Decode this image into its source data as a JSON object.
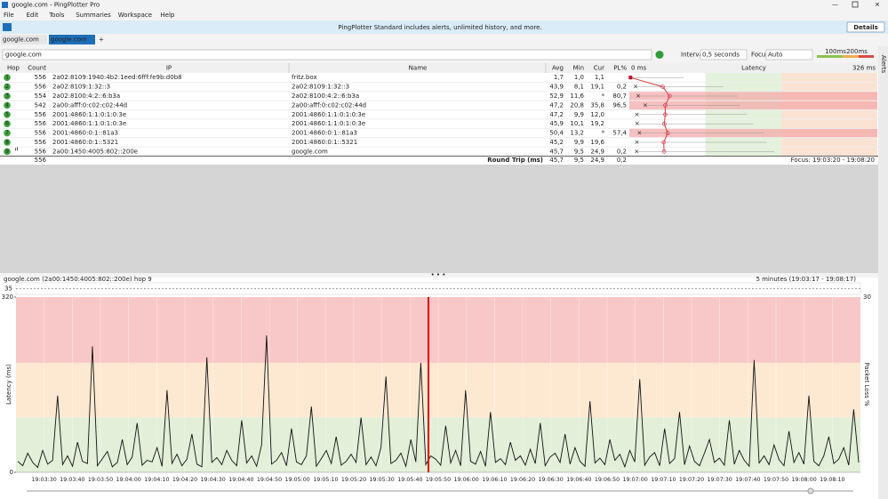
{
  "window": {
    "title": "google.com - PingPlotter Pro"
  },
  "menu": [
    "File",
    "Edit",
    "Tools",
    "Summaries",
    "Workspace",
    "Help"
  ],
  "banner": {
    "text": "PingPlotter Standard includes alerts, unlimited history, and more.",
    "button": "Details"
  },
  "tabs": [
    "google.com",
    "google.com"
  ],
  "toolbar": {
    "target": "google.com",
    "interval_label": "Interval",
    "interval": "0,5 seconds",
    "focus_label": "Focus",
    "focus": "Auto",
    "thresholds": [
      {
        "value": 100,
        "label": "100ms"
      },
      {
        "value": 200,
        "label": "200ms"
      }
    ]
  },
  "side_tab": "Alerts",
  "table": {
    "columns": [
      "Hop",
      "Count",
      "IP",
      "Name",
      "Avg",
      "Min",
      "Cur",
      "PL%"
    ],
    "graph_header": {
      "start": "0 ms",
      "title": "Latency",
      "end": "326 ms"
    },
    "graph_scale": [
      0,
      326
    ],
    "rows": [
      [
        "1",
        "556",
        "2a02:8109:1940:4b2:1eed:6fff:fe9b:d0b8",
        "fritz.box",
        "1,7",
        "1,0",
        "1,1",
        ""
      ],
      [
        "2",
        "556",
        "2a02:8109:1:32::3",
        "2a02:8109:1:32::3",
        "43,9",
        "8,1",
        "19,1",
        "0,2"
      ],
      [
        "3",
        "554",
        "2a02:8100:4:2::6:b3a",
        "2a02:8100:4:2::6:b3a",
        "52,9",
        "11,6",
        "*",
        "80,7"
      ],
      [
        "4",
        "542",
        "2a00:afff:0:c02:c02:44d",
        "2a00:afff:0:c02:c02:44d",
        "47,2",
        "20,8",
        "35,8",
        "96,5"
      ],
      [
        "5",
        "556",
        "2001:4860:1:1:0:1:0:3e",
        "2001:4860:1:1:0:1:0:3e",
        "47,2",
        "9,9",
        "12,0",
        ""
      ],
      [
        "6",
        "556",
        "2001:4860:1:1:0:1:0:3e",
        "2001:4860:1:1:0:1:0:3e",
        "45,9",
        "10,1",
        "19,2",
        ""
      ],
      [
        "7",
        "556",
        "2001:4860:0:1::81a3",
        "2001:4860:0:1::81a3",
        "50,4",
        "13,2",
        "*",
        "57,4"
      ],
      [
        "8",
        "556",
        "2001:4860:0:1::5321",
        "2001:4860:0:1::5321",
        "45,2",
        "9,9",
        "19,6",
        ""
      ],
      [
        "9",
        "556",
        "2a00:1450:4005:802::200e",
        "google.com",
        "45,7",
        "9,5",
        "24,9",
        "0,2"
      ]
    ],
    "summary": {
      "count": "556",
      "label": "Round Trip (ms)",
      "avg": "45,7",
      "min": "9,5",
      "cur": "24,9",
      "pl": "0,2",
      "focus": "Focus: 19:03:20 - 19:08:20"
    }
  },
  "chart_data": {
    "type": "line",
    "title": "google.com (2a00:1450:4005:802::200e) hop 9",
    "subtitle": "5 minutes (19:03:17 - 19:08:17)",
    "y_label": "Latency (ms)",
    "y2_label": "Packet Loss %",
    "overview_label": "35",
    "ylim": [
      0,
      320
    ],
    "yticks": [
      0,
      320
    ],
    "y2lim": [
      0,
      30
    ],
    "y2ticks": [
      30
    ],
    "color": "#111111",
    "time_labels": [
      "19:03:30",
      "19:03:40",
      "19:03:50",
      "19:04:00",
      "19:04:10",
      "19:04:20",
      "19:04:30",
      "19:04:40",
      "19:04:50",
      "19:05:00",
      "19:05:10",
      "19:05:20",
      "19:05:30",
      "19:05:40",
      "19:05:50",
      "19:06:00",
      "19:06:10",
      "19:06:20",
      "19:06:30",
      "19:06:40",
      "19:06:50",
      "19:07:00",
      "19:07:10",
      "19:07:20",
      "19:07:30",
      "19:07:40",
      "19:07:50",
      "19:08:00",
      "19:08:10"
    ],
    "values": [
      20,
      12,
      35,
      18,
      9,
      40,
      15,
      22,
      140,
      14,
      30,
      11,
      55,
      20,
      16,
      230,
      12,
      25,
      38,
      10,
      18,
      60,
      14,
      28,
      90,
      13,
      22,
      19,
      45,
      11,
      150,
      16,
      33,
      12,
      24,
      70,
      15,
      10,
      210,
      18,
      27,
      14,
      40,
      22,
      12,
      95,
      17,
      30,
      11,
      50,
      250,
      15,
      22,
      36,
      12,
      80,
      19,
      14,
      30,
      120,
      11,
      25,
      40,
      16,
      65,
      13,
      20,
      33,
      18,
      100,
      14,
      28,
      12,
      45,
      175,
      16,
      22,
      35,
      11,
      60,
      19,
      200,
      14,
      30,
      24,
      13,
      85,
      17,
      40,
      12,
      150,
      20,
      15,
      38,
      11,
      110,
      18,
      25,
      14,
      55,
      22,
      30,
      13,
      42,
      16,
      90,
      12,
      28,
      35,
      18,
      70,
      15,
      45,
      20,
      11,
      130,
      17,
      26,
      14,
      60,
      22,
      33,
      10,
      40,
      19,
      170,
      13,
      28,
      36,
      12,
      80,
      16,
      25,
      110,
      14,
      48,
      20,
      12,
      35,
      60,
      18,
      26,
      13,
      95,
      15,
      40,
      22,
      11,
      205,
      17,
      30,
      14,
      50,
      23,
      12,
      75,
      18,
      36,
      15,
      140,
      20,
      12,
      30,
      65,
      16,
      24,
      45,
      13,
      115,
      18
    ]
  }
}
